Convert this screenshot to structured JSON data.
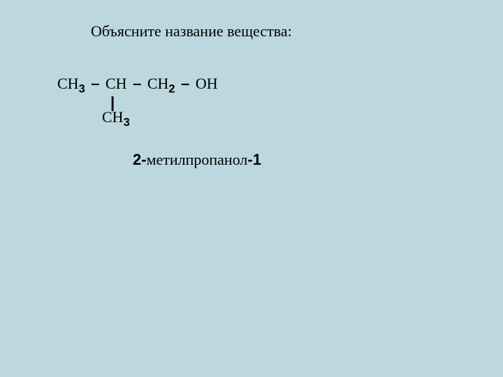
{
  "background_color": "#bcd8de",
  "title": "Объясните название вещества:",
  "formula": {
    "frag_ch": "СН",
    "sub_3": "3",
    "sub_2": "2",
    "dash": "–",
    "frag_oh": "ОН",
    "pipe": "|",
    "branch_ch": "СН",
    "branch_sub": "3"
  },
  "name": {
    "prefix": "2-",
    "middle": "метилпропанол",
    "suffix": "-1"
  }
}
